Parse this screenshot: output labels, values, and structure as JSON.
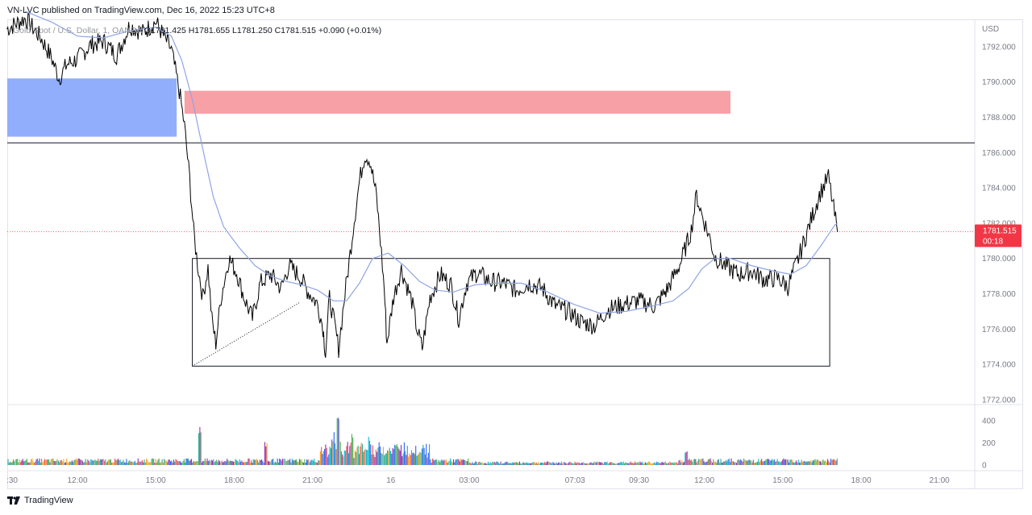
{
  "header": {
    "publisher_line": "VN-LVC published on TradingView.com, Dec 16, 2022 15:23 UTC+8"
  },
  "legend": {
    "symbol": "Gold Spot / U.S. Dollar, 1, OANDA",
    "open": "O1781.425",
    "high": "H1781.655",
    "low": "L1781.250",
    "close": "C1781.515",
    "change": "+0.090 (+0.01%)"
  },
  "footer": {
    "brand": "TradingView"
  },
  "colors": {
    "candle": "#000000",
    "ma_line": "#90a4e6",
    "blue_zone": "#90aefc",
    "red_zone": "#f7a0a6",
    "price_tag": "#f23645",
    "grid": "#f0f3fa",
    "axis_text": "#787b86"
  },
  "chart_data": {
    "type": "line",
    "symbol": "Gold Spot / U.S. Dollar",
    "currency_label": "USD",
    "y_axis": {
      "range": [
        1772,
        1794
      ],
      "ticks": [
        "1792.000",
        "1790.000",
        "1788.000",
        "1786.000",
        "1784.000",
        "1782.000",
        "1780.000",
        "1778.000",
        "1776.000",
        "1774.000",
        "1772.000"
      ]
    },
    "x_axis": {
      "ticks": [
        ":30",
        "12:00",
        "15:00",
        "18:00",
        "21:00",
        "16",
        "03:00",
        "07:03",
        "09:30",
        "12:00",
        "15:00",
        "18:00",
        "21:00"
      ],
      "tick_hours": [
        9.5,
        12,
        15,
        18,
        21,
        24,
        27,
        31.05,
        33.5,
        36,
        39,
        42,
        45
      ]
    },
    "last_price": {
      "value": 1781.515,
      "label": "1781.515",
      "countdown": "00:18"
    },
    "price_path": [
      [
        9.3,
        1793.0
      ],
      [
        10.0,
        1793.6
      ],
      [
        10.6,
        1792.5
      ],
      [
        11.0,
        1791.4
      ],
      [
        11.3,
        1790.2
      ],
      [
        11.6,
        1791.0
      ],
      [
        12.0,
        1791.3
      ],
      [
        12.5,
        1792.1
      ],
      [
        13.0,
        1792.3
      ],
      [
        13.5,
        1791.5
      ],
      [
        14.0,
        1793.2
      ],
      [
        14.5,
        1792.8
      ],
      [
        15.0,
        1793.4
      ],
      [
        15.3,
        1792.6
      ],
      [
        15.6,
        1791.8
      ],
      [
        15.9,
        1789.5
      ],
      [
        16.1,
        1787.5
      ],
      [
        16.3,
        1784.5
      ],
      [
        16.45,
        1781.5
      ],
      [
        16.6,
        1779.7
      ],
      [
        16.8,
        1777.8
      ],
      [
        17.0,
        1779.5
      ],
      [
        17.15,
        1776.5
      ],
      [
        17.3,
        1775.2
      ],
      [
        17.5,
        1777.8
      ],
      [
        17.8,
        1780.0
      ],
      [
        18.1,
        1779.2
      ],
      [
        18.4,
        1777.7
      ],
      [
        18.7,
        1776.6
      ],
      [
        19.0,
        1778.6
      ],
      [
        19.4,
        1779.1
      ],
      [
        19.8,
        1778.3
      ],
      [
        20.1,
        1779.6
      ],
      [
        20.5,
        1779.0
      ],
      [
        20.8,
        1778.2
      ],
      [
        21.2,
        1777.4
      ],
      [
        21.4,
        1776.1
      ],
      [
        21.5,
        1774.6
      ],
      [
        21.65,
        1777.8
      ],
      [
        21.85,
        1776.2
      ],
      [
        22.0,
        1774.9
      ],
      [
        22.2,
        1777.5
      ],
      [
        22.4,
        1779.8
      ],
      [
        22.6,
        1782.2
      ],
      [
        22.8,
        1784.4
      ],
      [
        23.0,
        1785.9
      ],
      [
        23.2,
        1785.6
      ],
      [
        23.45,
        1783.5
      ],
      [
        23.6,
        1781.0
      ],
      [
        23.75,
        1778.2
      ],
      [
        23.85,
        1775.2
      ],
      [
        24.1,
        1777.8
      ],
      [
        24.4,
        1779.4
      ],
      [
        24.8,
        1777.6
      ],
      [
        25.0,
        1776.0
      ],
      [
        25.2,
        1774.9
      ],
      [
        25.5,
        1777.8
      ],
      [
        25.9,
        1779.1
      ],
      [
        26.3,
        1778.5
      ],
      [
        26.6,
        1776.6
      ],
      [
        26.9,
        1778.6
      ],
      [
        27.3,
        1779.2
      ],
      [
        27.8,
        1778.7
      ],
      [
        28.3,
        1778.6
      ],
      [
        28.8,
        1778.2
      ],
      [
        29.3,
        1778.6
      ],
      [
        29.8,
        1778.3
      ],
      [
        30.3,
        1777.3
      ],
      [
        30.8,
        1777.0
      ],
      [
        31.3,
        1776.4
      ],
      [
        31.8,
        1776.2
      ],
      [
        32.3,
        1777.1
      ],
      [
        32.9,
        1777.4
      ],
      [
        33.5,
        1777.6
      ],
      [
        34.1,
        1777.3
      ],
      [
        34.6,
        1778.3
      ],
      [
        35.1,
        1779.8
      ],
      [
        35.5,
        1781.6
      ],
      [
        35.7,
        1783.6
      ],
      [
        35.9,
        1782.5
      ],
      [
        36.2,
        1781.2
      ],
      [
        36.4,
        1780.1
      ],
      [
        36.8,
        1779.6
      ],
      [
        37.3,
        1779.1
      ],
      [
        37.8,
        1779.3
      ],
      [
        38.3,
        1778.8
      ],
      [
        38.8,
        1778.9
      ],
      [
        39.2,
        1778.4
      ],
      [
        39.6,
        1780.0
      ],
      [
        40.0,
        1781.8
      ],
      [
        40.4,
        1783.6
      ],
      [
        40.75,
        1784.6
      ],
      [
        40.95,
        1782.8
      ],
      [
        41.1,
        1781.5
      ]
    ],
    "ma_path": [
      [
        10.0,
        1794.0
      ],
      [
        11.0,
        1793.4
      ],
      [
        12.0,
        1792.6
      ],
      [
        13.0,
        1792.5
      ],
      [
        14.0,
        1792.9
      ],
      [
        15.0,
        1793.1
      ],
      [
        15.6,
        1792.6
      ],
      [
        16.0,
        1791.2
      ],
      [
        16.4,
        1789.0
      ],
      [
        16.8,
        1786.2
      ],
      [
        17.2,
        1783.5
      ],
      [
        17.6,
        1781.8
      ],
      [
        18.2,
        1780.6
      ],
      [
        18.8,
        1779.6
      ],
      [
        19.4,
        1779.0
      ],
      [
        20.0,
        1778.7
      ],
      [
        20.6,
        1778.5
      ],
      [
        21.2,
        1778.2
      ],
      [
        21.8,
        1777.6
      ],
      [
        22.3,
        1777.6
      ],
      [
        22.8,
        1778.6
      ],
      [
        23.3,
        1780.0
      ],
      [
        23.9,
        1780.3
      ],
      [
        24.5,
        1779.6
      ],
      [
        25.1,
        1778.7
      ],
      [
        25.7,
        1778.2
      ],
      [
        26.4,
        1778.1
      ],
      [
        27.2,
        1778.5
      ],
      [
        28.0,
        1778.6
      ],
      [
        29.0,
        1778.6
      ],
      [
        30.0,
        1778.1
      ],
      [
        31.0,
        1777.4
      ],
      [
        32.0,
        1776.9
      ],
      [
        33.0,
        1777.0
      ],
      [
        34.0,
        1777.3
      ],
      [
        34.8,
        1777.6
      ],
      [
        35.4,
        1778.3
      ],
      [
        35.9,
        1779.4
      ],
      [
        36.4,
        1780.0
      ],
      [
        37.0,
        1780.0
      ],
      [
        37.8,
        1779.6
      ],
      [
        38.6,
        1779.3
      ],
      [
        39.3,
        1779.1
      ],
      [
        39.9,
        1779.6
      ],
      [
        40.5,
        1780.8
      ],
      [
        41.0,
        1781.9
      ],
      [
        41.1,
        1782.0
      ]
    ],
    "volume_axis": {
      "ticks": [
        "400",
        "200",
        "0"
      ],
      "range": [
        0,
        450
      ]
    },
    "volume_bursts": [
      [
        16.7,
        380
      ],
      [
        22.0,
        440
      ],
      [
        21.8,
        300
      ],
      [
        22.5,
        280
      ],
      [
        23.2,
        260
      ],
      [
        19.2,
        220
      ],
      [
        24.3,
        180
      ],
      [
        35.3,
        130
      ]
    ],
    "zones": [
      {
        "name": "blue-zone",
        "color": "#90aefc",
        "x_range": [
          9.3,
          15.8
        ],
        "y_range": [
          1786.9,
          1790.2
        ]
      },
      {
        "name": "red-zone",
        "color": "#f7a0a6",
        "x_range": [
          16.1,
          37.0
        ],
        "y_range": [
          1788.2,
          1789.5
        ]
      },
      {
        "name": "range-box",
        "x_range": [
          16.4,
          40.8
        ],
        "y_range": [
          1773.9,
          1780.0
        ]
      }
    ],
    "hline": {
      "name": "resistance-line",
      "y": 1786.55
    },
    "trendline": {
      "name": "dotted-trendline",
      "from": [
        16.4,
        1773.9
      ],
      "to": [
        20.5,
        1777.5
      ]
    },
    "last_price_line": 1781.515
  }
}
